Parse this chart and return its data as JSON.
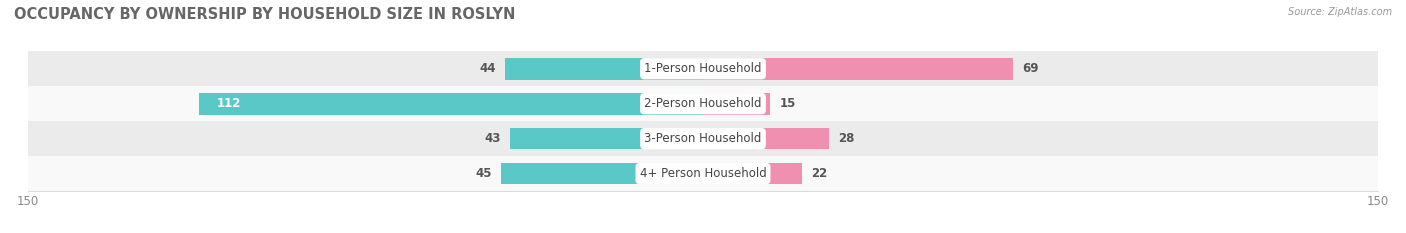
{
  "title": "OCCUPANCY BY OWNERSHIP BY HOUSEHOLD SIZE IN ROSLYN",
  "source": "Source: ZipAtlas.com",
  "categories": [
    "1-Person Household",
    "2-Person Household",
    "3-Person Household",
    "4+ Person Household"
  ],
  "owner_values": [
    44,
    112,
    43,
    45
  ],
  "renter_values": [
    69,
    15,
    28,
    22
  ],
  "owner_color": "#5bc8c8",
  "renter_color": "#f090b0",
  "row_bg_colors": [
    "#ebebeb",
    "#f9f9f9",
    "#ebebeb",
    "#f9f9f9"
  ],
  "axis_max": 150,
  "label_fontsize": 8.5,
  "title_fontsize": 10.5,
  "legend_fontsize": 8.5,
  "bar_height": 0.62,
  "value_color_outside": "#555555",
  "value_color_inside": "#ffffff"
}
